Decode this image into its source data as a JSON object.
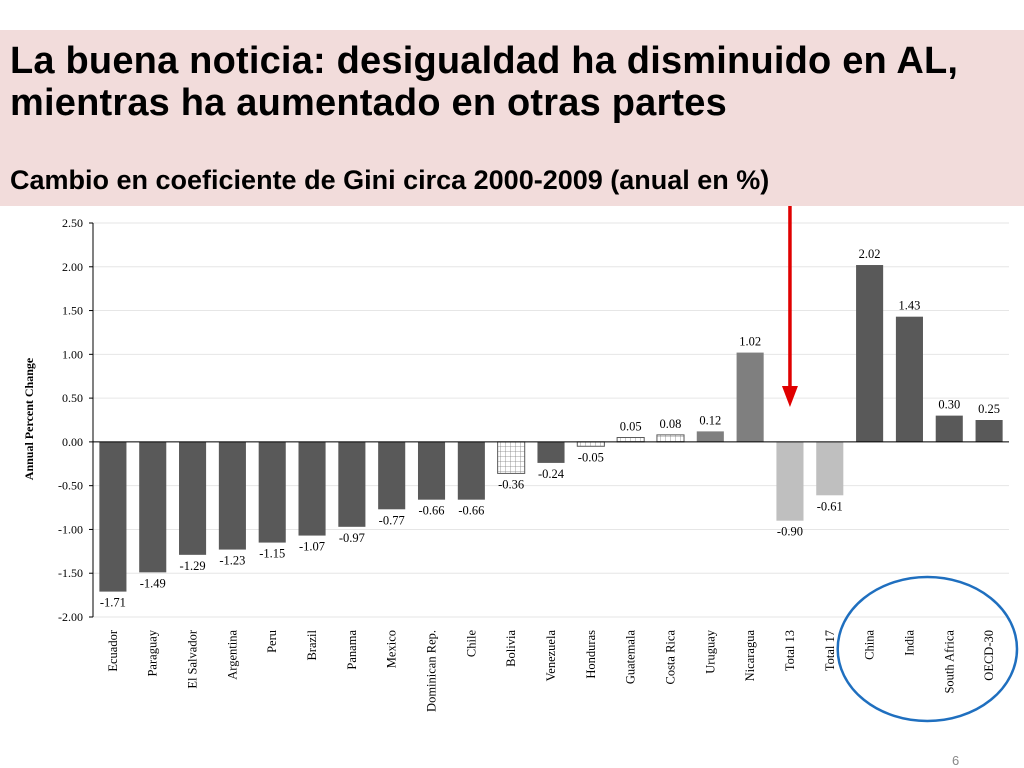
{
  "slide": {
    "title": "La buena noticia: desigualdad ha disminuido en AL, mientras ha aumentado en otras partes",
    "subtitle": "Cambio en coeficiente de Gini circa 2000-2009 (anual en %)",
    "page_number": "6"
  },
  "colors": {
    "title_background": "#f2dcdb",
    "bar_dark": "#595959",
    "bar_medium": "#7f7f7f",
    "bar_light": "#bfbfbf",
    "arrow": "#e00000",
    "circle": "#1f6fbf"
  },
  "chart_data": {
    "type": "bar",
    "ylabel": "Annual Percent Change",
    "xlabel": "",
    "ylim": [
      -2.0,
      2.5
    ],
    "yticks": [
      "2.50",
      "2.00",
      "1.50",
      "1.00",
      "0.50",
      "0.00",
      "-0.50",
      "-1.00",
      "-1.50",
      "-2.00"
    ],
    "categories": [
      "Ecuador",
      "Paraguay",
      "El Salvador",
      "Argentina",
      "Peru",
      "Brazil",
      "Panama",
      "Mexico",
      "Dominican Rep.",
      "Chile",
      "Bolivia",
      "Venezuela",
      "Honduras",
      "Guatemala",
      "Costa Rica",
      "Uruguay",
      "Nicaragua",
      "Total 13",
      "Total 17",
      "China",
      "India",
      "South Africa",
      "OECD-30"
    ],
    "values": [
      -1.71,
      -1.49,
      -1.29,
      -1.23,
      -1.15,
      -1.07,
      -0.97,
      -0.77,
      -0.66,
      -0.66,
      -0.36,
      -0.24,
      -0.05,
      0.05,
      0.08,
      0.12,
      1.02,
      -0.9,
      -0.61,
      2.02,
      1.43,
      0.3,
      0.25
    ],
    "value_labels": [
      "-1.71",
      "-1.49",
      "-1.29",
      "-1.23",
      "-1.15",
      "-1.07",
      "-0.97",
      "-0.77",
      "-0.66",
      "-0.66",
      "-0.36",
      "-0.24",
      "-0.05",
      "0.05",
      "0.08",
      "0.12",
      "1.02",
      "-0.90",
      "-0.61",
      "2.02",
      "1.43",
      "0.30",
      "0.25"
    ],
    "bar_styles": [
      "dark",
      "dark",
      "dark",
      "dark",
      "dark",
      "dark",
      "dark",
      "dark",
      "dark",
      "dark",
      "grid",
      "dark",
      "grid",
      "grid",
      "grid",
      "medium",
      "medium",
      "light",
      "light",
      "dark",
      "dark",
      "dark",
      "dark"
    ],
    "grid": true,
    "legend": "none",
    "annotations": [
      {
        "type": "arrow",
        "color": "red",
        "points_to": "Total 13"
      },
      {
        "type": "circle",
        "color": "blue",
        "encloses": [
          "China",
          "India",
          "South Africa",
          "OECD-30"
        ]
      }
    ]
  }
}
